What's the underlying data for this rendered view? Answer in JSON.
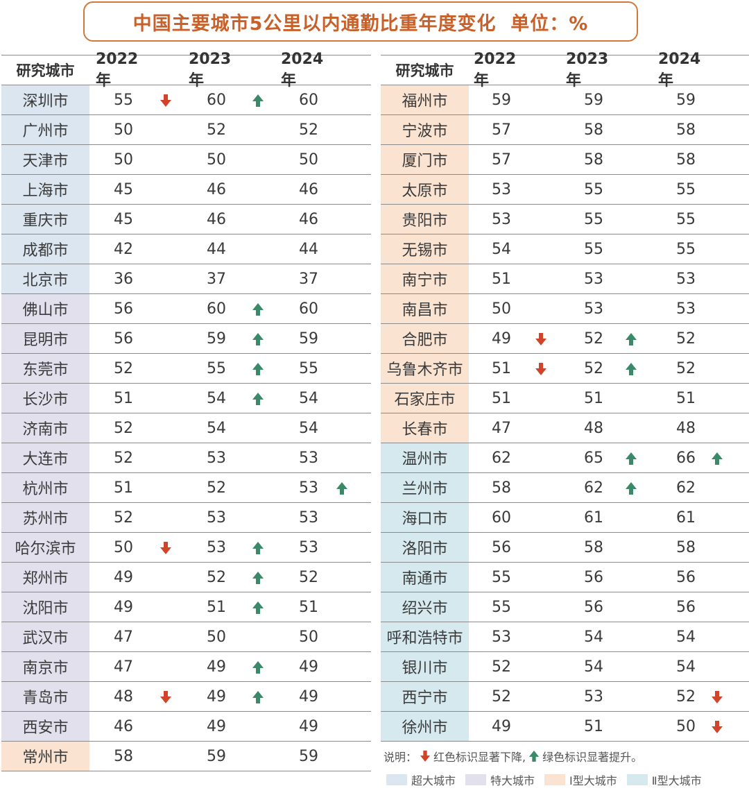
{
  "title": "中国主要城市5公里以内通勤比重年度变化  单位：%",
  "colors": {
    "title": "#c8602a",
    "down": "#d2442a",
    "up": "#3a8a6a",
    "super": "#dbe6f0",
    "mega": "#e3e0ee",
    "type1": "#fbe3d1",
    "type2": "#d5e9ef"
  },
  "chart_data": {
    "type": "table",
    "title": "中国主要城市5公里以内通勤比重年度变化  单位：%",
    "columns": [
      "研究城市",
      "2022年",
      "2023年",
      "2024年"
    ],
    "left": [
      {
        "city": "深圳市",
        "cat": "super",
        "v": [
          55,
          60,
          60
        ],
        "m": [
          "down",
          "up",
          ""
        ]
      },
      {
        "city": "广州市",
        "cat": "super",
        "v": [
          50,
          52,
          52
        ],
        "m": [
          "",
          "",
          ""
        ]
      },
      {
        "city": "天津市",
        "cat": "super",
        "v": [
          50,
          50,
          50
        ],
        "m": [
          "",
          "",
          ""
        ]
      },
      {
        "city": "上海市",
        "cat": "super",
        "v": [
          45,
          46,
          46
        ],
        "m": [
          "",
          "",
          ""
        ]
      },
      {
        "city": "重庆市",
        "cat": "super",
        "v": [
          45,
          46,
          46
        ],
        "m": [
          "",
          "",
          ""
        ]
      },
      {
        "city": "成都市",
        "cat": "super",
        "v": [
          42,
          44,
          44
        ],
        "m": [
          "",
          "",
          ""
        ]
      },
      {
        "city": "北京市",
        "cat": "super",
        "v": [
          36,
          37,
          37
        ],
        "m": [
          "",
          "",
          ""
        ]
      },
      {
        "city": "佛山市",
        "cat": "mega",
        "v": [
          56,
          60,
          60
        ],
        "m": [
          "",
          "up",
          ""
        ]
      },
      {
        "city": "昆明市",
        "cat": "mega",
        "v": [
          56,
          59,
          59
        ],
        "m": [
          "",
          "up",
          ""
        ]
      },
      {
        "city": "东莞市",
        "cat": "mega",
        "v": [
          52,
          55,
          55
        ],
        "m": [
          "",
          "up",
          ""
        ]
      },
      {
        "city": "长沙市",
        "cat": "mega",
        "v": [
          51,
          54,
          54
        ],
        "m": [
          "",
          "up",
          ""
        ]
      },
      {
        "city": "济南市",
        "cat": "mega",
        "v": [
          52,
          54,
          54
        ],
        "m": [
          "",
          "",
          ""
        ]
      },
      {
        "city": "大连市",
        "cat": "mega",
        "v": [
          52,
          53,
          53
        ],
        "m": [
          "",
          "",
          ""
        ]
      },
      {
        "city": "杭州市",
        "cat": "mega",
        "v": [
          51,
          52,
          53
        ],
        "m": [
          "",
          "",
          "up"
        ]
      },
      {
        "city": "苏州市",
        "cat": "mega",
        "v": [
          52,
          53,
          53
        ],
        "m": [
          "",
          "",
          ""
        ]
      },
      {
        "city": "哈尔滨市",
        "cat": "mega",
        "v": [
          50,
          53,
          53
        ],
        "m": [
          "down",
          "up",
          ""
        ]
      },
      {
        "city": "郑州市",
        "cat": "mega",
        "v": [
          49,
          52,
          52
        ],
        "m": [
          "",
          "up",
          ""
        ]
      },
      {
        "city": "沈阳市",
        "cat": "mega",
        "v": [
          49,
          51,
          51
        ],
        "m": [
          "",
          "up",
          ""
        ]
      },
      {
        "city": "武汉市",
        "cat": "mega",
        "v": [
          47,
          50,
          50
        ],
        "m": [
          "",
          "",
          ""
        ]
      },
      {
        "city": "南京市",
        "cat": "mega",
        "v": [
          47,
          49,
          49
        ],
        "m": [
          "",
          "up",
          ""
        ]
      },
      {
        "city": "青岛市",
        "cat": "mega",
        "v": [
          48,
          49,
          49
        ],
        "m": [
          "down",
          "up",
          ""
        ]
      },
      {
        "city": "西安市",
        "cat": "mega",
        "v": [
          46,
          49,
          49
        ],
        "m": [
          "",
          "",
          ""
        ]
      },
      {
        "city": "常州市",
        "cat": "type1",
        "v": [
          58,
          59,
          59
        ],
        "m": [
          "",
          "",
          ""
        ]
      }
    ],
    "right": [
      {
        "city": "福州市",
        "cat": "type1",
        "v": [
          59,
          59,
          59
        ],
        "m": [
          "",
          "",
          ""
        ]
      },
      {
        "city": "宁波市",
        "cat": "type1",
        "v": [
          57,
          58,
          58
        ],
        "m": [
          "",
          "",
          ""
        ]
      },
      {
        "city": "厦门市",
        "cat": "type1",
        "v": [
          57,
          58,
          58
        ],
        "m": [
          "",
          "",
          ""
        ]
      },
      {
        "city": "太原市",
        "cat": "type1",
        "v": [
          53,
          55,
          55
        ],
        "m": [
          "",
          "",
          ""
        ]
      },
      {
        "city": "贵阳市",
        "cat": "type1",
        "v": [
          53,
          55,
          55
        ],
        "m": [
          "",
          "",
          ""
        ]
      },
      {
        "city": "无锡市",
        "cat": "type1",
        "v": [
          54,
          55,
          55
        ],
        "m": [
          "",
          "",
          ""
        ]
      },
      {
        "city": "南宁市",
        "cat": "type1",
        "v": [
          51,
          53,
          53
        ],
        "m": [
          "",
          "",
          ""
        ]
      },
      {
        "city": "南昌市",
        "cat": "type1",
        "v": [
          50,
          53,
          53
        ],
        "m": [
          "",
          "",
          ""
        ]
      },
      {
        "city": "合肥市",
        "cat": "type1",
        "v": [
          49,
          52,
          52
        ],
        "m": [
          "down",
          "up",
          ""
        ]
      },
      {
        "city": "乌鲁木齐市",
        "cat": "type1",
        "v": [
          51,
          52,
          52
        ],
        "m": [
          "down",
          "up",
          ""
        ]
      },
      {
        "city": "石家庄市",
        "cat": "type1",
        "v": [
          51,
          51,
          51
        ],
        "m": [
          "",
          "",
          ""
        ]
      },
      {
        "city": "长春市",
        "cat": "type1",
        "v": [
          47,
          48,
          48
        ],
        "m": [
          "",
          "",
          ""
        ]
      },
      {
        "city": "温州市",
        "cat": "type2",
        "v": [
          62,
          65,
          66
        ],
        "m": [
          "",
          "up",
          "up"
        ]
      },
      {
        "city": "兰州市",
        "cat": "type2",
        "v": [
          58,
          62,
          62
        ],
        "m": [
          "",
          "up",
          ""
        ]
      },
      {
        "city": "海口市",
        "cat": "type2",
        "v": [
          60,
          61,
          61
        ],
        "m": [
          "",
          "",
          ""
        ]
      },
      {
        "city": "洛阳市",
        "cat": "type2",
        "v": [
          56,
          58,
          58
        ],
        "m": [
          "",
          "",
          ""
        ]
      },
      {
        "city": "南通市",
        "cat": "type2",
        "v": [
          55,
          56,
          56
        ],
        "m": [
          "",
          "",
          ""
        ]
      },
      {
        "city": "绍兴市",
        "cat": "type2",
        "v": [
          55,
          56,
          56
        ],
        "m": [
          "",
          "",
          ""
        ]
      },
      {
        "city": "呼和浩特市",
        "cat": "type2",
        "v": [
          53,
          54,
          54
        ],
        "m": [
          "",
          "",
          ""
        ]
      },
      {
        "city": "银川市",
        "cat": "type2",
        "v": [
          52,
          54,
          54
        ],
        "m": [
          "",
          "",
          ""
        ]
      },
      {
        "city": "西宁市",
        "cat": "type2",
        "v": [
          52,
          53,
          52
        ],
        "m": [
          "",
          "",
          "down"
        ]
      },
      {
        "city": "徐州市",
        "cat": "type2",
        "v": [
          49,
          51,
          50
        ],
        "m": [
          "",
          "",
          "down"
        ]
      }
    ]
  },
  "note": {
    "prefix": "说明：",
    "down_text": "红色标识显著下降,",
    "up_text": "绿色标识显著提升。"
  },
  "legend": [
    {
      "label": "超大城市",
      "cat": "super"
    },
    {
      "label": "特大城市",
      "cat": "mega"
    },
    {
      "label": "Ⅰ型大城市",
      "cat": "type1"
    },
    {
      "label": "Ⅱ型大城市",
      "cat": "type2"
    }
  ]
}
